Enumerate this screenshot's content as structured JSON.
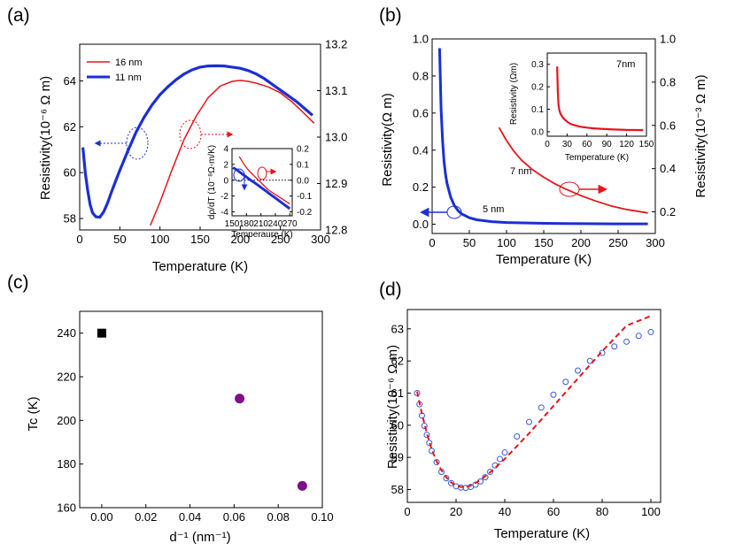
{
  "chart_data": [
    {
      "panel": "(a)",
      "type": "line",
      "xlabel": "Temperature (K)",
      "ylabel": "Resistivity(10⁻⁶ Ω m)",
      "xlim": [
        0,
        300
      ],
      "ylim": [
        57.5,
        65.6
      ],
      "y2lim": [
        12.8,
        13.2
      ],
      "xticks": [
        "0",
        "50",
        "100",
        "150",
        "200",
        "250",
        "300"
      ],
      "yticks": [
        "58",
        "60",
        "62",
        "64"
      ],
      "y2ticks": [
        "12.8",
        "12.9",
        "13.0",
        "13.1",
        "13.2"
      ],
      "series": [
        {
          "name": "16 nm",
          "axis": "right",
          "color": "#e8141b",
          "x": [
            88,
            100,
            115,
            130,
            145,
            160,
            175,
            190,
            200,
            210,
            220,
            235,
            250,
            265,
            280,
            292
          ],
          "y": [
            12.81,
            12.86,
            12.93,
            12.995,
            13.045,
            13.085,
            13.11,
            13.12,
            13.122,
            13.12,
            13.116,
            13.108,
            13.095,
            13.075,
            13.05,
            13.03
          ]
        },
        {
          "name": "11 nm",
          "axis": "left",
          "color": "#1a2fd6",
          "x": [
            4,
            7,
            10,
            13,
            16,
            20,
            25,
            30,
            35,
            40,
            50,
            60,
            70,
            80,
            90,
            100,
            110,
            120,
            130,
            140,
            150,
            160,
            170,
            180,
            190,
            200,
            210,
            220,
            230,
            240,
            250,
            260,
            270,
            280,
            290
          ],
          "y": [
            61.1,
            60.0,
            59.2,
            58.6,
            58.25,
            58.08,
            58.05,
            58.3,
            58.7,
            59.2,
            60.1,
            60.95,
            61.75,
            62.4,
            62.95,
            63.4,
            63.75,
            64.05,
            64.3,
            64.48,
            64.6,
            64.65,
            64.66,
            64.65,
            64.6,
            64.55,
            64.45,
            64.3,
            64.1,
            63.85,
            63.6,
            63.35,
            63.1,
            62.8,
            62.5
          ]
        }
      ],
      "annotations": [
        "arrow to left axis (11 nm)",
        "arrow to right axis (16 nm)"
      ],
      "inset": {
        "xlabel": "Temperaure (K)",
        "ylabel": "dρ/dT (10⁻⁸Ω-m/K)",
        "xlim": [
          150,
          275
        ],
        "ylim": [
          -4.5,
          4
        ],
        "y2lim": [
          -0.225,
          0.2
        ],
        "xticks": [
          "150",
          "180",
          "210",
          "240",
          "270"
        ],
        "yticks": [
          "-4",
          "-2",
          "0",
          "2",
          "4"
        ],
        "y2ticks": [
          "-0.2",
          "-0.1",
          "0.0",
          "0.1",
          "0.2"
        ],
        "series": [
          {
            "name": "11 nm",
            "axis": "left",
            "color": "#1a2fd6",
            "x": [
              152,
              160,
              170,
              180,
              190,
              200,
              210,
              220,
              230,
              240,
              250,
              260,
              270
            ],
            "y": [
              1.6,
              1.3,
              0.85,
              0.4,
              -0.05,
              -0.45,
              -0.9,
              -1.35,
              -1.8,
              -2.25,
              -2.7,
              -3.15,
              -3.6
            ]
          },
          {
            "name": "16 nm",
            "axis": "right",
            "color": "#e8141b",
            "x": [
              165,
              175,
              185,
              195,
              205,
              215,
              225,
              240,
              255,
              270
            ],
            "y": [
              0.15,
              0.1,
              0.06,
              0.03,
              0.0,
              -0.03,
              -0.06,
              -0.09,
              -0.12,
              -0.15
            ]
          }
        ]
      }
    },
    {
      "panel": "(b)",
      "type": "line",
      "xlabel": "Temperature (K)",
      "ylabel": "Resistivity(Ω m)",
      "y2label": "Resistivity(10⁻³ Ω m)",
      "xlim": [
        0,
        300
      ],
      "ylim": [
        -0.05,
        1.0
      ],
      "y2lim": [
        0.1,
        1.0
      ],
      "xticks": [
        "0",
        "50",
        "100",
        "150",
        "200",
        "250",
        "300"
      ],
      "yticks": [
        "0.0",
        "0.2",
        "0.4",
        "0.6",
        "0.8",
        "1.0"
      ],
      "y2ticks": [
        "0.2",
        "0.4",
        "0.6",
        "0.8",
        "1.0"
      ],
      "series": [
        {
          "name": "5 nm",
          "axis": "left",
          "color": "#1a2fd6",
          "x": [
            10,
            12,
            14,
            16,
            18,
            20,
            25,
            30,
            35,
            40,
            50,
            60,
            80,
            100,
            150,
            200,
            250,
            290
          ],
          "y": [
            0.95,
            0.62,
            0.45,
            0.34,
            0.27,
            0.22,
            0.145,
            0.1,
            0.072,
            0.055,
            0.035,
            0.024,
            0.014,
            0.009,
            0.005,
            0.003,
            0.002,
            0.002
          ]
        },
        {
          "name": "7 nm",
          "axis": "right",
          "color": "#e8141b",
          "x": [
            90,
            100,
            110,
            120,
            135,
            150,
            165,
            180,
            200,
            220,
            240,
            260,
            290
          ],
          "y": [
            0.59,
            0.53,
            0.48,
            0.44,
            0.395,
            0.36,
            0.33,
            0.305,
            0.275,
            0.25,
            0.228,
            0.212,
            0.195
          ]
        }
      ],
      "labels": [
        "5 nm",
        "7 nm"
      ],
      "inset": {
        "xlabel": "Temperature (K)",
        "ylabel": "Resistivity (Ωm)",
        "note": "7nm",
        "xlim": [
          0,
          150
        ],
        "ylim": [
          -0.02,
          0.35
        ],
        "xticks": [
          "0",
          "30",
          "60",
          "90",
          "120",
          "150"
        ],
        "yticks": [
          "0.0",
          "0.1",
          "0.2",
          "0.3"
        ],
        "series": [
          {
            "name": "7 nm",
            "color": "#e8141b",
            "x": [
              15,
              16,
              17,
              18,
              20,
              23,
              26,
              30,
              35,
              40,
              50,
              60,
              70,
              80,
              100,
              120,
              145
            ],
            "y": [
              0.29,
              0.18,
              0.12,
              0.1,
              0.08,
              0.065,
              0.055,
              0.045,
              0.035,
              0.03,
              0.022,
              0.018,
              0.015,
              0.013,
              0.01,
              0.008,
              0.007
            ]
          }
        ]
      }
    },
    {
      "panel": "(c)",
      "type": "scatter",
      "xlabel": "d⁻¹ (nm⁻¹)",
      "ylabel": "Tc (K)",
      "xlim": [
        -0.01,
        0.1
      ],
      "ylim": [
        160,
        250
      ],
      "xticks": [
        "0.00",
        "0.02",
        "0.04",
        "0.06",
        "0.08",
        "0.10"
      ],
      "yticks": [
        "160",
        "180",
        "200",
        "220",
        "240"
      ],
      "points": [
        {
          "x": 0.0,
          "y": 240,
          "marker": "square",
          "color": "#000000"
        },
        {
          "x": 0.0625,
          "y": 210,
          "marker": "circle",
          "color": "#7e0f86"
        },
        {
          "x": 0.0909,
          "y": 170,
          "marker": "circle",
          "color": "#7e0f86"
        }
      ]
    },
    {
      "panel": "(d)",
      "type": "scatter",
      "xlabel": "Temperature (K)",
      "ylabel": "Resistivity(10⁻⁶ Ω m)",
      "xlim": [
        0,
        104
      ],
      "ylim": [
        57.6,
        63.6
      ],
      "xticks": [
        "0",
        "20",
        "40",
        "60",
        "80",
        "100"
      ],
      "yticks": [
        "58",
        "59",
        "60",
        "61",
        "62",
        "63"
      ],
      "data_series": {
        "name": "measured",
        "marker": "open-circle",
        "color": "#3a57d8",
        "x": [
          4,
          5,
          6,
          7,
          8,
          9,
          10,
          12,
          14,
          16,
          18,
          20,
          22,
          24,
          26,
          28,
          30,
          32,
          34,
          36,
          38,
          40,
          45,
          50,
          55,
          60,
          65,
          70,
          75,
          80,
          85,
          90,
          95,
          100
        ],
        "y": [
          61.0,
          60.65,
          60.3,
          59.98,
          59.7,
          59.45,
          59.2,
          58.85,
          58.55,
          58.35,
          58.2,
          58.1,
          58.06,
          58.05,
          58.08,
          58.15,
          58.25,
          58.38,
          58.55,
          58.75,
          58.95,
          59.15,
          59.65,
          60.1,
          60.55,
          60.95,
          61.35,
          61.7,
          62.0,
          62.25,
          62.45,
          62.6,
          62.78,
          62.9
        ]
      },
      "fit_series": {
        "name": "fit",
        "style": "dashed",
        "color": "#e8141b",
        "x": [
          4,
          6,
          8,
          10,
          12,
          14,
          16,
          18,
          20,
          22,
          24,
          26,
          28,
          30,
          35,
          40,
          50,
          60,
          70,
          80,
          90,
          100
        ],
        "y": [
          61.05,
          60.35,
          59.75,
          59.25,
          58.88,
          58.6,
          58.38,
          58.22,
          58.12,
          58.08,
          58.08,
          58.12,
          58.2,
          58.3,
          58.6,
          58.95,
          59.75,
          60.6,
          61.45,
          62.3,
          63.1,
          63.4
        ]
      }
    }
  ]
}
